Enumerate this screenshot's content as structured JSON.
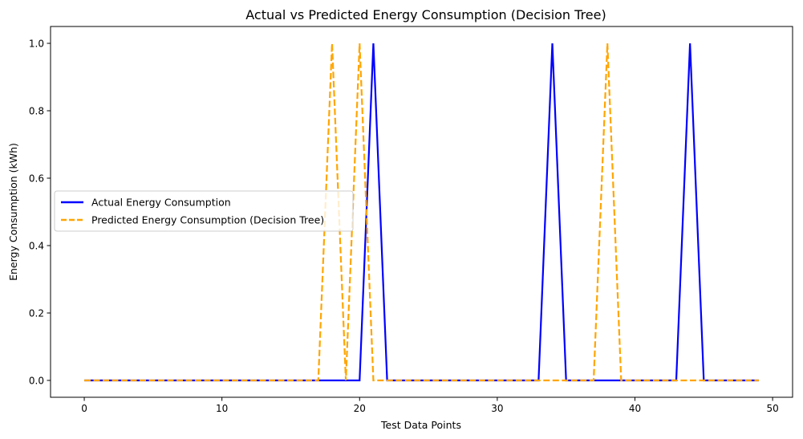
{
  "chart_data": {
    "type": "line",
    "title": "Actual vs Predicted Energy Consumption (Decision Tree)",
    "xlabel": "Test Data Points",
    "ylabel": "Energy Consumption (kWh)",
    "xlim": [
      -2.45,
      51.45
    ],
    "ylim": [
      -0.05,
      1.05
    ],
    "xticks": [
      0,
      10,
      20,
      30,
      40,
      50
    ],
    "yticks": [
      0.0,
      0.2,
      0.4,
      0.6,
      0.8,
      1.0
    ],
    "xtick_labels": [
      "0",
      "10",
      "20",
      "30",
      "40",
      "50"
    ],
    "ytick_labels": [
      "0.0",
      "0.2",
      "0.4",
      "0.6",
      "0.8",
      "1.0"
    ],
    "legend_position": "center-left",
    "series": [
      {
        "name": "Actual Energy Consumption",
        "color": "#0000ff",
        "style": "solid",
        "x": [
          0,
          1,
          2,
          3,
          4,
          5,
          6,
          7,
          8,
          9,
          10,
          11,
          12,
          13,
          14,
          15,
          16,
          17,
          18,
          19,
          20,
          21,
          22,
          23,
          24,
          25,
          26,
          27,
          28,
          29,
          30,
          31,
          32,
          33,
          34,
          35,
          36,
          37,
          38,
          39,
          40,
          41,
          42,
          43,
          44,
          45,
          46,
          47,
          48,
          49
        ],
        "values": [
          0,
          0,
          0,
          0,
          0,
          0,
          0,
          0,
          0,
          0,
          0,
          0,
          0,
          0,
          0,
          0,
          0,
          0,
          0,
          0,
          0,
          1,
          0,
          0,
          0,
          0,
          0,
          0,
          0,
          0,
          0,
          0,
          0,
          0,
          1,
          0,
          0,
          0,
          0,
          0,
          0,
          0,
          0,
          0,
          1,
          0,
          0,
          0,
          0,
          0
        ]
      },
      {
        "name": "Predicted Energy Consumption (Decision Tree)",
        "color": "#ffa500",
        "style": "dashed",
        "x": [
          0,
          1,
          2,
          3,
          4,
          5,
          6,
          7,
          8,
          9,
          10,
          11,
          12,
          13,
          14,
          15,
          16,
          17,
          18,
          19,
          20,
          21,
          22,
          23,
          24,
          25,
          26,
          27,
          28,
          29,
          30,
          31,
          32,
          33,
          34,
          35,
          36,
          37,
          38,
          39,
          40,
          41,
          42,
          43,
          44,
          45,
          46,
          47,
          48,
          49
        ],
        "values": [
          0,
          0,
          0,
          0,
          0,
          0,
          0,
          0,
          0,
          0,
          0,
          0,
          0,
          0,
          0,
          0,
          0,
          0,
          1,
          0,
          1,
          0,
          0,
          0,
          0,
          0,
          0,
          0,
          0,
          0,
          0,
          0,
          0,
          0,
          0,
          0,
          0,
          0,
          1,
          0,
          0,
          0,
          0,
          0,
          0,
          0,
          0,
          0,
          0,
          0
        ]
      }
    ]
  }
}
